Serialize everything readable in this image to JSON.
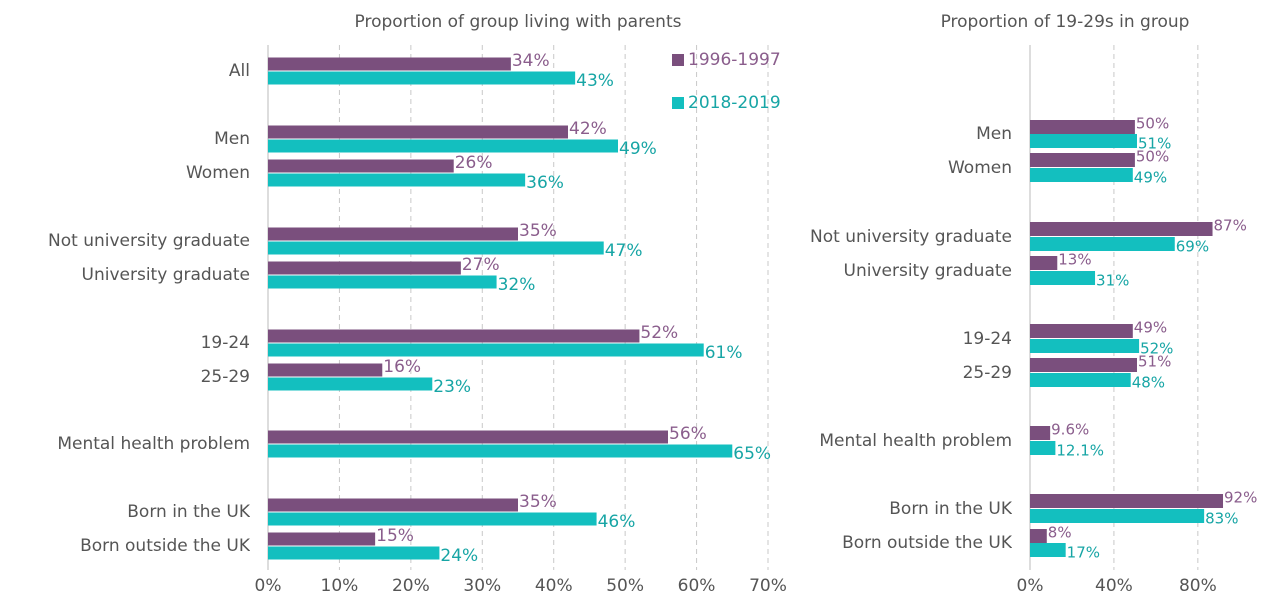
{
  "chart_data": [
    {
      "type": "hbar",
      "title": "Proportion of group living with parents",
      "categories": [
        "All",
        "Men",
        "Women",
        "Not university graduate",
        "University graduate",
        "19-24",
        "25-29",
        "Mental health problem",
        "Born in the UK",
        "Born outside the UK"
      ],
      "series": [
        {
          "name": "1996-1997",
          "color": "#7a4f7d",
          "values": [
            34,
            42,
            26,
            35,
            27,
            52,
            16,
            56,
            35,
            15
          ],
          "value_labels": [
            "34%",
            "42%",
            "26%",
            "35%",
            "27%",
            "52%",
            "16%",
            "56%",
            "35%",
            "15%"
          ]
        },
        {
          "name": "2018-2019",
          "color": "#13bfbf",
          "values": [
            43,
            49,
            36,
            47,
            32,
            61,
            23,
            65,
            46,
            24
          ],
          "value_labels": [
            "43%",
            "49%",
            "36%",
            "47%",
            "32%",
            "61%",
            "23%",
            "65%",
            "46%",
            "24%"
          ]
        }
      ],
      "xlim": [
        0,
        70
      ],
      "xticks": [
        {
          "value": 0,
          "label": "0%"
        },
        {
          "value": 10,
          "label": "10%"
        },
        {
          "value": 20,
          "label": "20%"
        },
        {
          "value": 30,
          "label": "30%"
        },
        {
          "value": 40,
          "label": "40%"
        },
        {
          "value": 50,
          "label": "50%"
        },
        {
          "value": 60,
          "label": "60%"
        },
        {
          "value": 70,
          "label": "70%"
        }
      ],
      "grid": true,
      "legend": "top-right"
    },
    {
      "type": "hbar",
      "title": "Proportion of 19-29s in group",
      "categories": [
        "Men",
        "Women",
        "Not university graduate",
        "University graduate",
        "19-24",
        "25-29",
        "Mental health problem",
        "Born in the UK",
        "Born outside the UK"
      ],
      "series": [
        {
          "color": "#7a4f7d",
          "values": [
            50,
            50,
            87,
            13,
            49,
            51,
            9.6,
            92,
            8
          ],
          "value_labels": [
            "50%",
            "50%",
            "87%",
            "13%",
            "49%",
            "51%",
            "9.6%",
            "92%",
            "8%"
          ]
        },
        {
          "color": "#13bfbf",
          "values": [
            51,
            49,
            69,
            31,
            52,
            48,
            12.1,
            83,
            17
          ],
          "value_labels": [
            "51%",
            "49%",
            "69%",
            "31%",
            "52%",
            "48%",
            "12.1%",
            "83%",
            "17%"
          ]
        }
      ],
      "xlim": [
        0,
        102
      ],
      "xticks": [
        {
          "value": 0,
          "label": "0%"
        },
        {
          "value": 40,
          "label": "40%"
        },
        {
          "value": 80,
          "label": "80%"
        }
      ],
      "grid": true
    }
  ]
}
